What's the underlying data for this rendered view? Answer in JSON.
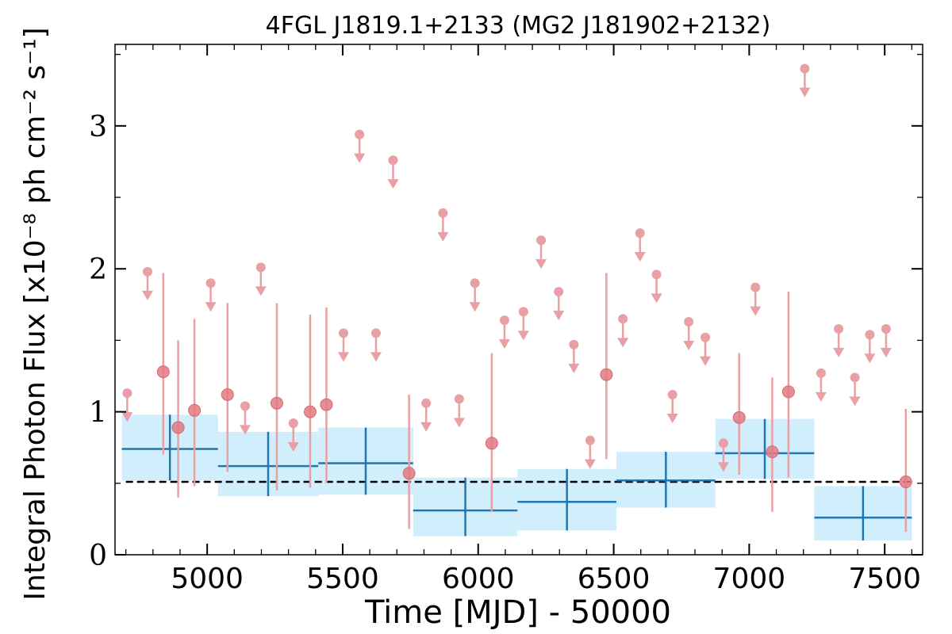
{
  "chart_data": {
    "type": "scatter",
    "title": "4FGL J1819.1+2133 (MG2 J181902+2132)",
    "xlabel": "Time [MJD] - 50000",
    "ylabel": "Integral Photon Flux [x10⁻⁸ ph cm⁻² s⁻¹]",
    "xlim": [
      4660,
      7640
    ],
    "ylim": [
      0,
      3.57
    ],
    "x_ticks": [
      5000,
      5500,
      6000,
      6500,
      7000,
      7500
    ],
    "x_tick_labels": [
      "5000",
      "5500",
      "6000",
      "6500",
      "7000",
      "7500"
    ],
    "y_ticks": [
      0,
      1,
      2,
      3
    ],
    "y_tick_labels": [
      "0",
      "1",
      "2",
      "3"
    ],
    "grid": false,
    "reference_line": {
      "y": 0.51,
      "style": "dashed",
      "color": "#000000"
    },
    "series": [
      {
        "kind": "short_bins_upper_limits",
        "color": "#e8a0a4",
        "points": [
          [
            4705,
            1.13
          ],
          [
            4780,
            1.98
          ],
          [
            5013,
            1.9
          ],
          [
            5140,
            1.04
          ],
          [
            5198,
            2.01
          ],
          [
            5318,
            0.92
          ],
          [
            5503,
            1.55
          ],
          [
            5562,
            2.94
          ],
          [
            5623,
            1.55
          ],
          [
            5686,
            2.76
          ],
          [
            5808,
            1.06
          ],
          [
            5870,
            2.39
          ],
          [
            5930,
            1.09
          ],
          [
            5988,
            1.9
          ],
          [
            6097,
            1.64
          ],
          [
            6167,
            1.7
          ],
          [
            6232,
            2.2
          ],
          [
            6297,
            1.84
          ],
          [
            6353,
            1.47
          ],
          [
            6413,
            0.8
          ],
          [
            6534,
            1.65
          ],
          [
            6597,
            2.25
          ],
          [
            6658,
            1.96
          ],
          [
            6717,
            1.12
          ],
          [
            6777,
            1.63
          ],
          [
            6838,
            1.52
          ],
          [
            6905,
            0.78
          ],
          [
            7023,
            1.87
          ],
          [
            7205,
            3.4
          ],
          [
            7265,
            1.27
          ],
          [
            7330,
            1.58
          ],
          [
            7390,
            1.24
          ],
          [
            7445,
            1.54
          ],
          [
            7505,
            1.58
          ]
        ]
      },
      {
        "kind": "short_bins_detections",
        "color": "#e07a80",
        "points": [
          [
            4838,
            1.28,
            0.7,
            1.97
          ],
          [
            4893,
            0.89,
            0.4,
            1.5
          ],
          [
            4953,
            1.01,
            0.48,
            1.65
          ],
          [
            5075,
            1.12,
            0.58,
            1.76
          ],
          [
            5257,
            1.06,
            0.45,
            1.76
          ],
          [
            5380,
            1.0,
            0.47,
            1.68
          ],
          [
            5440,
            1.05,
            0.5,
            1.73
          ],
          [
            5745,
            0.57,
            0.18,
            1.12
          ],
          [
            6050,
            0.78,
            0.3,
            1.41
          ],
          [
            6473,
            1.26,
            0.67,
            1.97
          ],
          [
            6963,
            0.96,
            0.56,
            1.41
          ],
          [
            7085,
            0.72,
            0.3,
            1.24
          ],
          [
            7145,
            1.14,
            0.54,
            1.84
          ],
          [
            7578,
            0.51,
            0.16,
            1.02
          ]
        ]
      },
      {
        "kind": "long_bins",
        "color": "#1f77b4",
        "band_color": "#d0eefc",
        "bins": [
          [
            4685,
            5040,
            0.74,
            0.52,
            0.98
          ],
          [
            5040,
            5410,
            0.62,
            0.41,
            0.86
          ],
          [
            5410,
            5760,
            0.64,
            0.42,
            0.89
          ],
          [
            5760,
            6145,
            0.31,
            0.13,
            0.54
          ],
          [
            6145,
            6510,
            0.37,
            0.17,
            0.6
          ],
          [
            6510,
            6875,
            0.52,
            0.33,
            0.72
          ],
          [
            6875,
            7240,
            0.71,
            0.53,
            0.95
          ],
          [
            7240,
            7600,
            0.26,
            0.1,
            0.48
          ]
        ]
      }
    ]
  }
}
